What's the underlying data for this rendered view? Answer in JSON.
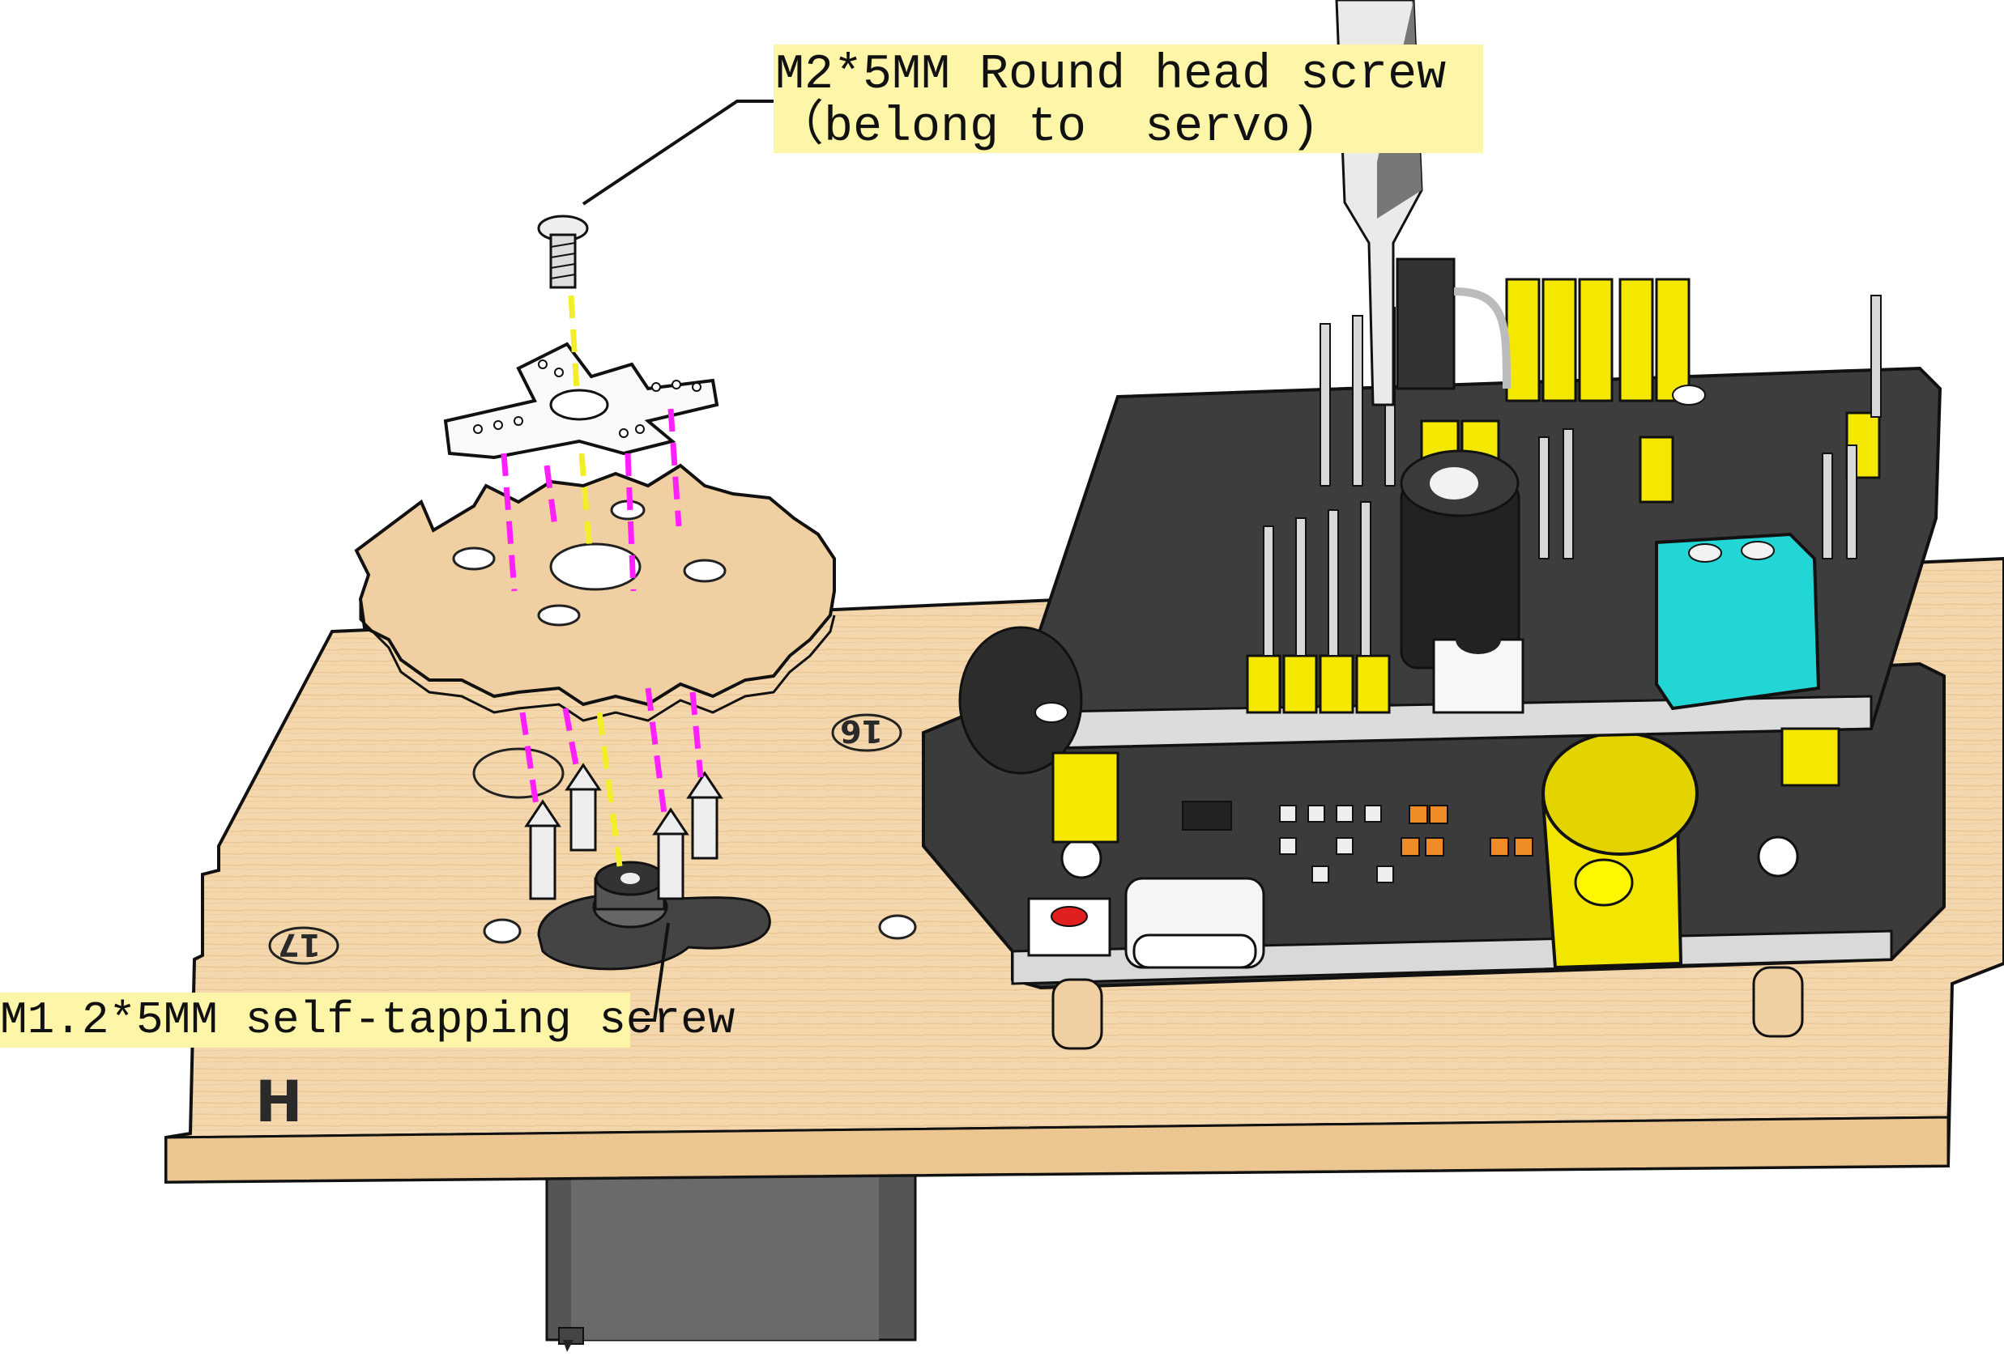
{
  "callouts": {
    "top_line1": "M2*5MM Round head screw",
    "top_line2": "（belong to  servo)",
    "bottom": "M1.2*5MM self-tapping screw"
  },
  "board_marks": {
    "mark_a": "16",
    "mark_b": "17",
    "mark_c": "H"
  },
  "colors": {
    "wood": "#f4d7ac",
    "wood_edge": "#e8c38e",
    "pcb": "#3b3b3b",
    "header_yellow": "#f5e800",
    "terminal_cyan": "#22d6d6",
    "guide_magenta": "#ff1fff",
    "guide_yellow": "#f2ee2a",
    "callout_bg": "#fdf6a8"
  }
}
